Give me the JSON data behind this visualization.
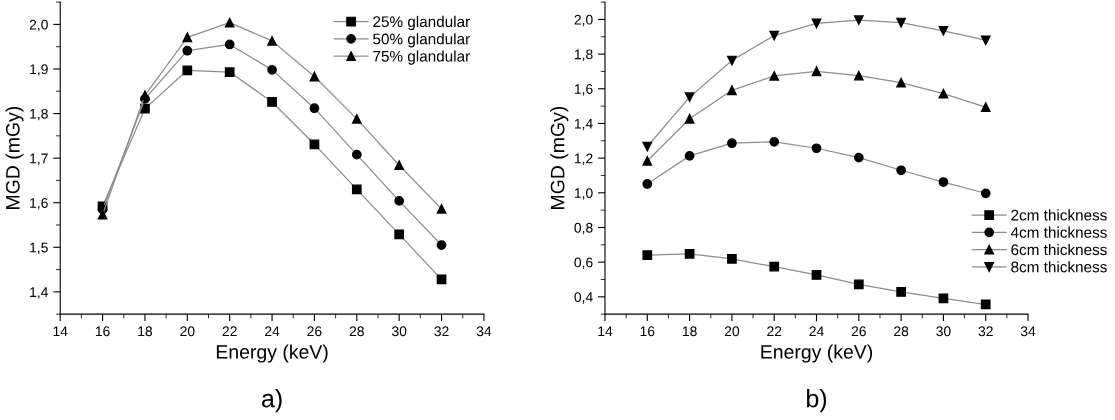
{
  "chart_data": [
    {
      "type": "line",
      "xlabel": "Energy (keV)",
      "ylabel": "MGD (mGy)",
      "annotations": [
        "a)"
      ],
      "x": [
        16,
        18,
        20,
        22,
        24,
        26,
        28,
        30,
        32
      ],
      "series": [
        {
          "name": "25% glandular",
          "color": "#000000",
          "marker": "square",
          "values": [
            1.592,
            1.811,
            1.897,
            1.893,
            1.826,
            1.731,
            1.63,
            1.529,
            1.428
          ]
        },
        {
          "name": "50% glandular",
          "color": "#000000",
          "marker": "circle",
          "values": [
            1.585,
            1.833,
            1.941,
            1.955,
            1.898,
            1.812,
            1.708,
            1.604,
            1.505
          ]
        },
        {
          "name": "75% glandular",
          "color": "#000000",
          "marker": "triangle",
          "values": [
            1.573,
            1.841,
            1.971,
            2.004,
            1.963,
            1.883,
            1.788,
            1.684,
            1.586
          ]
        }
      ],
      "xlim": [
        14,
        34
      ],
      "xticks": [
        14,
        16,
        18,
        20,
        22,
        24,
        26,
        28,
        30,
        32,
        34
      ],
      "ylim": [
        1.35,
        2.05
      ],
      "yticks": [
        {
          "value": 1.4,
          "label": "1,4"
        },
        {
          "value": 1.5,
          "label": "1,5"
        },
        {
          "value": 1.6,
          "label": "1,6"
        },
        {
          "value": 1.7,
          "label": "1,7"
        },
        {
          "value": 1.8,
          "label": "1,8"
        },
        {
          "value": 1.9,
          "label": "1,9"
        },
        {
          "value": 2.0,
          "label": "2,0"
        }
      ],
      "legend": "top right",
      "grid": false
    },
    {
      "type": "line",
      "xlabel": "Energy (keV)",
      "ylabel": "MGD (mGy)",
      "annotations": [
        "b)"
      ],
      "x": [
        16,
        18,
        20,
        22,
        24,
        26,
        28,
        30,
        32
      ],
      "series": [
        {
          "name": "2cm thickness",
          "color": "#000000",
          "marker": "square",
          "values": [
            0.64,
            0.648,
            0.619,
            0.574,
            0.526,
            0.472,
            0.428,
            0.391,
            0.356
          ]
        },
        {
          "name": "4cm thickness",
          "color": "#000000",
          "marker": "circle",
          "values": [
            1.051,
            1.213,
            1.286,
            1.294,
            1.257,
            1.203,
            1.13,
            1.062,
            0.997
          ]
        },
        {
          "name": "6cm thickness",
          "color": "#000000",
          "marker": "triangle",
          "values": [
            1.184,
            1.427,
            1.591,
            1.674,
            1.701,
            1.676,
            1.635,
            1.572,
            1.494
          ]
        },
        {
          "name": "8cm thickness",
          "color": "#000000",
          "marker": "triangle_down",
          "values": [
            1.267,
            1.552,
            1.763,
            1.907,
            1.977,
            1.996,
            1.981,
            1.934,
            1.88
          ]
        }
      ],
      "xlim": [
        14,
        34
      ],
      "xticks": [
        14,
        16,
        18,
        20,
        22,
        24,
        26,
        28,
        30,
        32,
        34
      ],
      "ylim": [
        0.3,
        2.1
      ],
      "yticks": [
        {
          "value": 0.4,
          "label": "0,4"
        },
        {
          "value": 0.6,
          "label": "0,6"
        },
        {
          "value": 0.8,
          "label": "0,8"
        },
        {
          "value": 1.0,
          "label": "1,0"
        },
        {
          "value": 1.2,
          "label": "1,2"
        },
        {
          "value": 1.4,
          "label": "1,4"
        },
        {
          "value": 1.6,
          "label": "1,6"
        },
        {
          "value": 1.8,
          "label": "1,8"
        },
        {
          "value": 2.0,
          "label": "2,0"
        }
      ],
      "legend": "bottom right",
      "grid": false
    }
  ]
}
